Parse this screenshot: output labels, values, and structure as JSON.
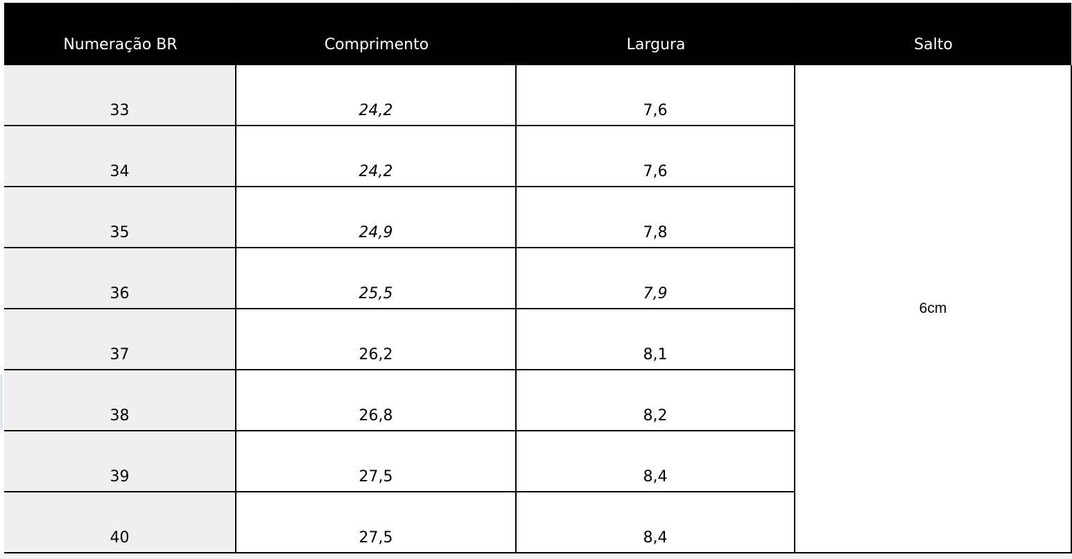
{
  "table": {
    "header": [
      "Numeração BR",
      "Comprimento",
      "Largura",
      "Salto"
    ],
    "rows": [
      [
        "33",
        "24,2",
        "7,6"
      ],
      [
        "34",
        "24,2",
        "7,6"
      ],
      [
        "35",
        "24,9",
        "7,8"
      ],
      [
        "36",
        "25,5",
        "7,9"
      ],
      [
        "37",
        "26,2",
        "8,1"
      ],
      [
        "38",
        "26,8",
        "8,2"
      ],
      [
        "39",
        "27,5",
        "8,4"
      ],
      [
        "40",
        "27,5",
        "8,4"
      ]
    ],
    "salto": "6cm"
  }
}
